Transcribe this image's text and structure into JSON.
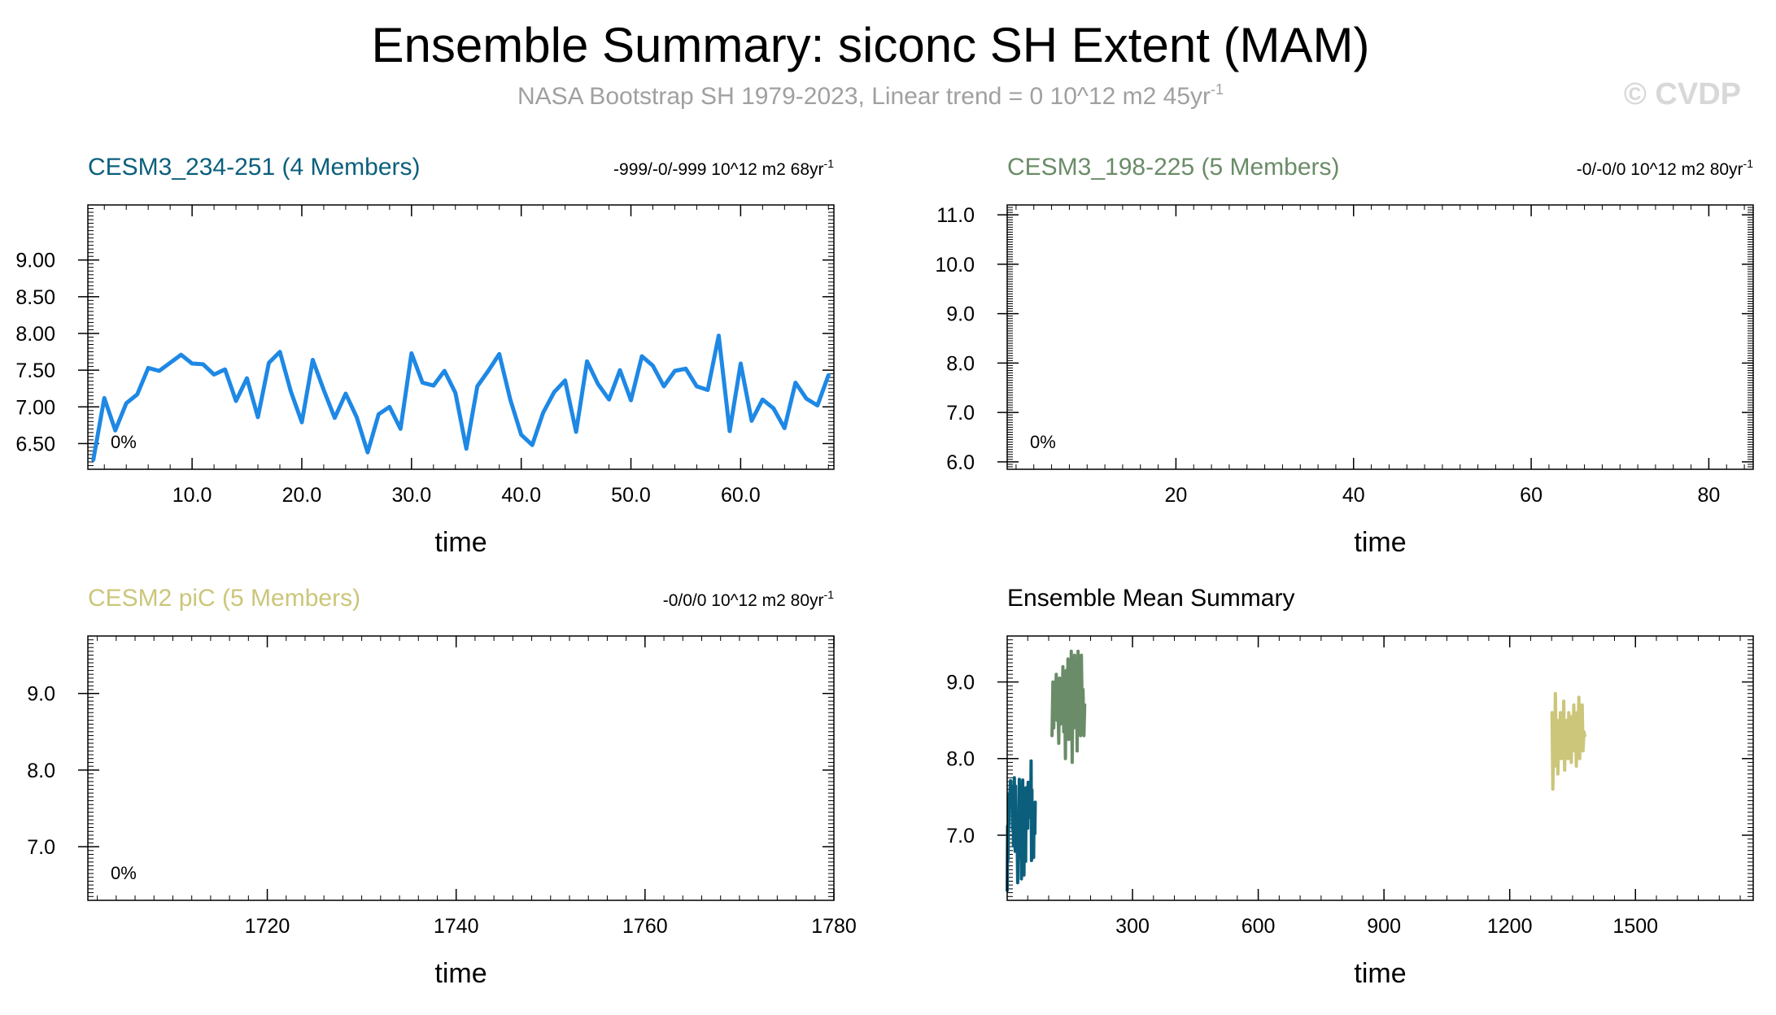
{
  "title": "Ensemble Summary: siconc SH Extent (MAM)",
  "subtitle": {
    "text": "NASA Bootstrap SH 1979-2023, Linear trend = 0 10^12 m2 45yr",
    "sup": "-1"
  },
  "watermark": "© CVDP",
  "colors": {
    "title": "#000000",
    "subtitle": "#a0a0a0",
    "watermark": "#d8d8d8",
    "cesm3_234": "#0b5f7d",
    "cesm3_198": "#6a8c68",
    "cesm2_pic": "#cbc67a",
    "member_line": "#1e88e5"
  },
  "chart_data": [
    {
      "id": "panel1",
      "type": "line",
      "title": "CESM3_234-251 (4 Members)",
      "title_color": "#0b5f7d",
      "trend_text": "-999/-0/-999 10^12 m2 68yr",
      "trend_sup": "-1",
      "pct_label": "0%",
      "xlabel": "time",
      "xlim": [
        0.5,
        68.5
      ],
      "ylim": [
        6.15,
        9.75
      ],
      "xticks": [
        10,
        20,
        30,
        40,
        50,
        60
      ],
      "xtick_labels": [
        "10.0",
        "20.0",
        "30.0",
        "40.0",
        "50.0",
        "60.0"
      ],
      "yticks": [
        6.5,
        7.0,
        7.5,
        8.0,
        8.5,
        9.0
      ],
      "ytick_labels": [
        "6.50",
        "7.00",
        "7.50",
        "8.00",
        "8.50",
        "9.00"
      ],
      "series": [
        {
          "name": "CESM3_234-251 member",
          "color": "#1e88e5",
          "width": 5,
          "x": [
            1,
            2,
            3,
            4,
            5,
            6,
            7,
            8,
            9,
            10,
            11,
            12,
            13,
            14,
            15,
            16,
            17,
            18,
            19,
            20,
            21,
            22,
            23,
            24,
            25,
            26,
            27,
            28,
            29,
            30,
            31,
            32,
            33,
            34,
            35,
            36,
            37,
            38,
            39,
            40,
            41,
            42,
            43,
            44,
            45,
            46,
            47,
            48,
            49,
            50,
            51,
            52,
            53,
            54,
            55,
            56,
            57,
            58,
            59,
            60,
            61,
            62,
            63,
            64,
            65,
            66,
            67,
            68
          ],
          "values": [
            6.28,
            7.12,
            6.68,
            7.05,
            7.17,
            7.53,
            7.49,
            7.6,
            7.71,
            7.59,
            7.58,
            7.44,
            7.51,
            7.08,
            7.39,
            6.86,
            7.6,
            7.75,
            7.21,
            6.79,
            7.64,
            7.23,
            6.85,
            7.18,
            6.86,
            6.38,
            6.9,
            7.0,
            6.7,
            7.73,
            7.33,
            7.29,
            7.49,
            7.19,
            6.43,
            7.28,
            7.49,
            7.72,
            7.1,
            6.62,
            6.48,
            6.92,
            7.2,
            7.36,
            6.66,
            7.62,
            7.31,
            7.1,
            7.5,
            7.09,
            7.69,
            7.56,
            7.28,
            7.49,
            7.52,
            7.28,
            7.23,
            7.97,
            6.67,
            7.59,
            6.81,
            7.1,
            6.98,
            6.71,
            7.33,
            7.11,
            7.02,
            7.43
          ]
        }
      ]
    },
    {
      "id": "panel2",
      "type": "line",
      "title": "CESM3_198-225 (5 Members)",
      "title_color": "#6a8c68",
      "trend_text": "-0/-0/0 10^12 m2 80yr",
      "trend_sup": "-1",
      "pct_label": "0%",
      "xlabel": "time",
      "xlim": [
        1,
        85
      ],
      "ylim": [
        5.85,
        11.2
      ],
      "xticks": [
        20,
        40,
        60,
        80
      ],
      "xtick_labels": [
        "20",
        "40",
        "60",
        "80"
      ],
      "yticks": [
        6.0,
        7.0,
        8.0,
        9.0,
        10.0,
        11.0
      ],
      "ytick_labels": [
        "6.0",
        "7.0",
        "8.0",
        "9.0",
        "10.0",
        "11.0"
      ],
      "series": []
    },
    {
      "id": "panel3",
      "type": "line",
      "title": "CESM2 piC (5 Members)",
      "title_color": "#cbc67a",
      "trend_text": "-0/0/0 10^12 m2 80yr",
      "trend_sup": "-1",
      "pct_label": "0%",
      "xlabel": "time",
      "xlim": [
        1701,
        1780
      ],
      "ylim": [
        6.3,
        9.75
      ],
      "xticks": [
        1720,
        1740,
        1760,
        1780
      ],
      "xtick_labels": [
        "1720",
        "1740",
        "1760",
        "1780"
      ],
      "yticks": [
        7.0,
        8.0,
        9.0
      ],
      "ytick_labels": [
        "7.0",
        "8.0",
        "9.0"
      ],
      "series": []
    },
    {
      "id": "panel4",
      "type": "line",
      "title": "Ensemble Mean Summary",
      "title_color": "#000000",
      "trend_text": "",
      "trend_sup": "",
      "pct_label": "",
      "xlabel": "time",
      "xlim": [
        1,
        1781
      ],
      "ylim": [
        6.15,
        9.6
      ],
      "xticks": [
        300,
        600,
        900,
        1200,
        1500
      ],
      "xtick_labels": [
        "300",
        "600",
        "900",
        "1200",
        "1500"
      ],
      "yticks": [
        7.0,
        8.0,
        9.0
      ],
      "ytick_labels": [
        "7.0",
        "8.0",
        "9.0"
      ],
      "series": [
        {
          "name": "CESM3_234-251",
          "color": "#0b5f7d",
          "width": 4,
          "x": [
            1,
            2,
            3,
            4,
            5,
            6,
            7,
            8,
            9,
            10,
            11,
            12,
            13,
            14,
            15,
            16,
            17,
            18,
            19,
            20,
            21,
            22,
            23,
            24,
            25,
            26,
            27,
            28,
            29,
            30,
            31,
            32,
            33,
            34,
            35,
            36,
            37,
            38,
            39,
            40,
            41,
            42,
            43,
            44,
            45,
            46,
            47,
            48,
            49,
            50,
            51,
            52,
            53,
            54,
            55,
            56,
            57,
            58,
            59,
            60,
            61,
            62,
            63,
            64,
            65,
            66,
            67,
            68
          ],
          "values": [
            6.28,
            7.12,
            6.68,
            7.05,
            7.17,
            7.53,
            7.49,
            7.6,
            7.71,
            7.59,
            7.58,
            7.44,
            7.51,
            7.08,
            7.39,
            6.86,
            7.6,
            7.75,
            7.21,
            6.79,
            7.64,
            7.23,
            6.85,
            7.18,
            6.86,
            6.38,
            6.9,
            7.0,
            6.7,
            7.73,
            7.33,
            7.29,
            7.49,
            7.19,
            6.43,
            7.28,
            7.49,
            7.72,
            7.1,
            6.62,
            6.48,
            6.92,
            7.2,
            7.36,
            6.66,
            7.62,
            7.31,
            7.1,
            7.5,
            7.09,
            7.69,
            7.56,
            7.28,
            7.49,
            7.52,
            7.28,
            7.23,
            7.97,
            6.67,
            7.59,
            6.81,
            7.1,
            6.98,
            6.71,
            7.33,
            7.11,
            7.02,
            7.43
          ]
        },
        {
          "name": "CESM3_198-225",
          "color": "#6a8c68",
          "width": 4,
          "x": [
            108,
            110,
            112,
            114,
            116,
            118,
            120,
            122,
            124,
            126,
            128,
            130,
            132,
            134,
            136,
            138,
            140,
            142,
            144,
            146,
            148,
            150,
            152,
            154,
            156,
            158,
            160,
            162,
            164,
            166,
            168,
            170,
            172,
            174,
            176,
            178,
            180,
            182,
            184,
            186
          ],
          "values": [
            8.3,
            9.0,
            8.4,
            8.9,
            8.7,
            9.1,
            8.5,
            8.8,
            8.2,
            9.05,
            8.45,
            8.95,
            8.6,
            9.2,
            8.35,
            8.85,
            8.0,
            9.15,
            8.55,
            9.3,
            8.25,
            9.0,
            8.65,
            9.4,
            7.95,
            9.1,
            8.4,
            9.35,
            8.7,
            9.05,
            8.1,
            9.4,
            8.5,
            9.2,
            8.3,
            9.35,
            8.6,
            8.9,
            8.3,
            8.7
          ]
        },
        {
          "name": "CESM2 piC",
          "color": "#cbc67a",
          "width": 4,
          "x": [
            1301,
            1303,
            1305,
            1307,
            1309,
            1311,
            1313,
            1315,
            1317,
            1319,
            1321,
            1323,
            1325,
            1327,
            1329,
            1331,
            1333,
            1335,
            1337,
            1339,
            1341,
            1343,
            1345,
            1347,
            1349,
            1351,
            1353,
            1355,
            1357,
            1359,
            1361,
            1363,
            1365,
            1367,
            1369,
            1371,
            1373,
            1375,
            1377,
            1379
          ],
          "values": [
            8.6,
            7.6,
            8.3,
            7.9,
            8.85,
            8.1,
            8.5,
            7.8,
            8.4,
            8.2,
            8.6,
            8.0,
            8.5,
            8.3,
            8.75,
            7.85,
            8.4,
            8.15,
            8.5,
            8.0,
            8.6,
            8.3,
            8.2,
            7.95,
            8.55,
            8.35,
            8.7,
            8.1,
            8.45,
            7.9,
            8.6,
            8.25,
            8.8,
            8.0,
            8.5,
            8.2,
            8.7,
            8.1,
            8.35,
            8.3
          ]
        }
      ]
    }
  ]
}
